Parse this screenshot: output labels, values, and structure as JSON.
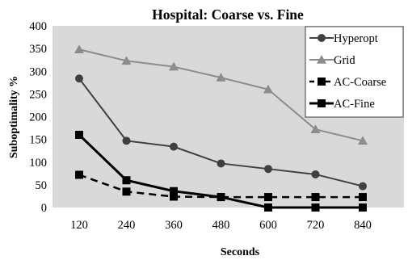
{
  "chart_data": {
    "type": "line",
    "title": "Hospital: Coarse vs. Fine",
    "xlabel": "Seconds",
    "ylabel": "Suboptimality %",
    "categories": [
      "120",
      "240",
      "360",
      "480",
      "600",
      "720",
      "840"
    ],
    "x": [
      120,
      240,
      360,
      480,
      600,
      720,
      840
    ],
    "ylim": [
      0,
      400
    ],
    "yticks": [
      "0",
      "50",
      "100",
      "150",
      "200",
      "250",
      "300",
      "350",
      "400"
    ],
    "grid": false,
    "legend_position": "top-right",
    "series": [
      {
        "name": "Hyperopt",
        "values": [
          284,
          147,
          134,
          97,
          85,
          73,
          47
        ],
        "color": "#404040",
        "marker": "circle",
        "dash": "solid"
      },
      {
        "name": "Grid",
        "values": [
          348,
          323,
          310,
          286,
          260,
          172,
          147
        ],
        "color": "#8c8c8c",
        "marker": "triangle",
        "dash": "solid"
      },
      {
        "name": "AC-Coarse",
        "values": [
          72,
          35,
          24,
          23,
          23,
          23,
          23
        ],
        "color": "#000000",
        "marker": "square",
        "dash": "dashed"
      },
      {
        "name": "AC-Fine",
        "values": [
          160,
          60,
          36,
          23,
          0,
          0,
          0
        ],
        "color": "#000000",
        "marker": "square",
        "dash": "solid"
      }
    ],
    "plot_background": "#d9d9d9"
  }
}
